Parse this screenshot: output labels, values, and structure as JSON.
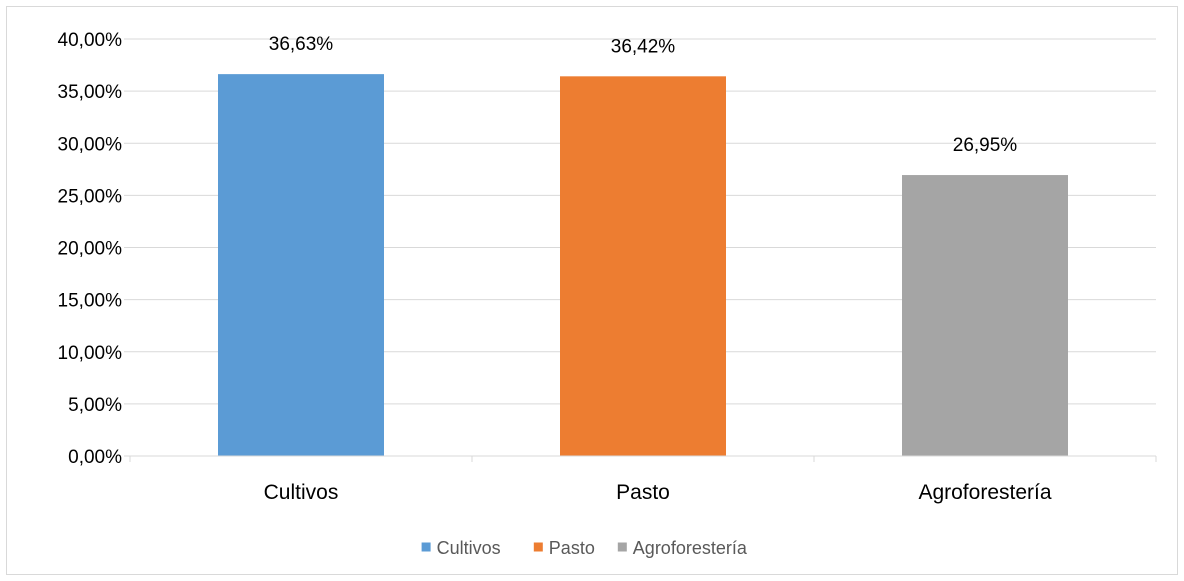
{
  "chart_data": {
    "type": "bar",
    "title": "",
    "xlabel": "",
    "ylabel": "",
    "categories": [
      "Cultivos",
      "Pasto",
      "Agroforestería"
    ],
    "values": [
      36.63,
      36.42,
      26.95
    ],
    "data_labels": [
      "36,63%",
      "36,42%",
      "26,95%"
    ],
    "colors": [
      "#5b9bd5",
      "#ed7d31",
      "#a5a5a5"
    ],
    "ylim": [
      0,
      40
    ],
    "ytick_values": [
      0,
      5,
      10,
      15,
      20,
      25,
      30,
      35,
      40
    ],
    "ytick_labels": [
      "0,00%",
      "5,00%",
      "10,00%",
      "15,00%",
      "20,00%",
      "25,00%",
      "30,00%",
      "35,00%",
      "40,00%"
    ],
    "grid": true,
    "legend": {
      "position": "bottom",
      "entries": [
        "Cultivos",
        "Pasto",
        "Agroforestería"
      ]
    },
    "gridline_color": "#d9d9d9",
    "text_color": "#000000"
  }
}
